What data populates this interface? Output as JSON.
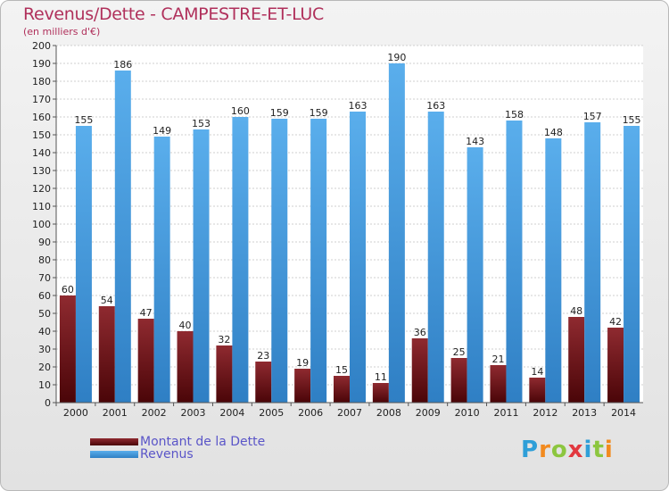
{
  "header": {
    "title": "Revenus/Dette - CAMPESTRE-ET-LUC",
    "subtitle": "(en milliers d'€)"
  },
  "colors": {
    "dette": "#6b0f14",
    "revenus": "#3a8fd8",
    "title": "#b0305b",
    "legend_text": "#5a55c8"
  },
  "chart_data": {
    "type": "bar",
    "title": "Revenus/Dette - CAMPESTRE-ET-LUC",
    "subtitle": "(en milliers d'€)",
    "categories": [
      "2000",
      "2001",
      "2002",
      "2003",
      "2004",
      "2005",
      "2006",
      "2007",
      "2008",
      "2009",
      "2010",
      "2011",
      "2012",
      "2013",
      "2014"
    ],
    "series": [
      {
        "name": "Montant de la Dette",
        "values": [
          60,
          54,
          47,
          40,
          32,
          23,
          19,
          15,
          11,
          36,
          25,
          21,
          14,
          48,
          42
        ]
      },
      {
        "name": "Revenus",
        "values": [
          155,
          186,
          149,
          153,
          160,
          159,
          159,
          163,
          190,
          163,
          143,
          158,
          148,
          157,
          155
        ]
      }
    ],
    "ylim": [
      0,
      200
    ],
    "yticks": [
      0,
      10,
      20,
      30,
      40,
      50,
      60,
      70,
      80,
      90,
      100,
      110,
      120,
      130,
      140,
      150,
      160,
      170,
      180,
      190,
      200
    ],
    "grid": true,
    "legend_position": "bottom-left"
  },
  "legend": {
    "items": [
      "Montant de la Dette",
      "Revenus"
    ]
  },
  "logo": {
    "letters": [
      "P",
      "r",
      "o",
      "x",
      "i",
      "t",
      "i"
    ],
    "colors": [
      "#2f9fd8",
      "#f28a1e",
      "#8cc63f",
      "#e2383f",
      "#2f9fd8",
      "#8cc63f",
      "#f28a1e"
    ]
  }
}
